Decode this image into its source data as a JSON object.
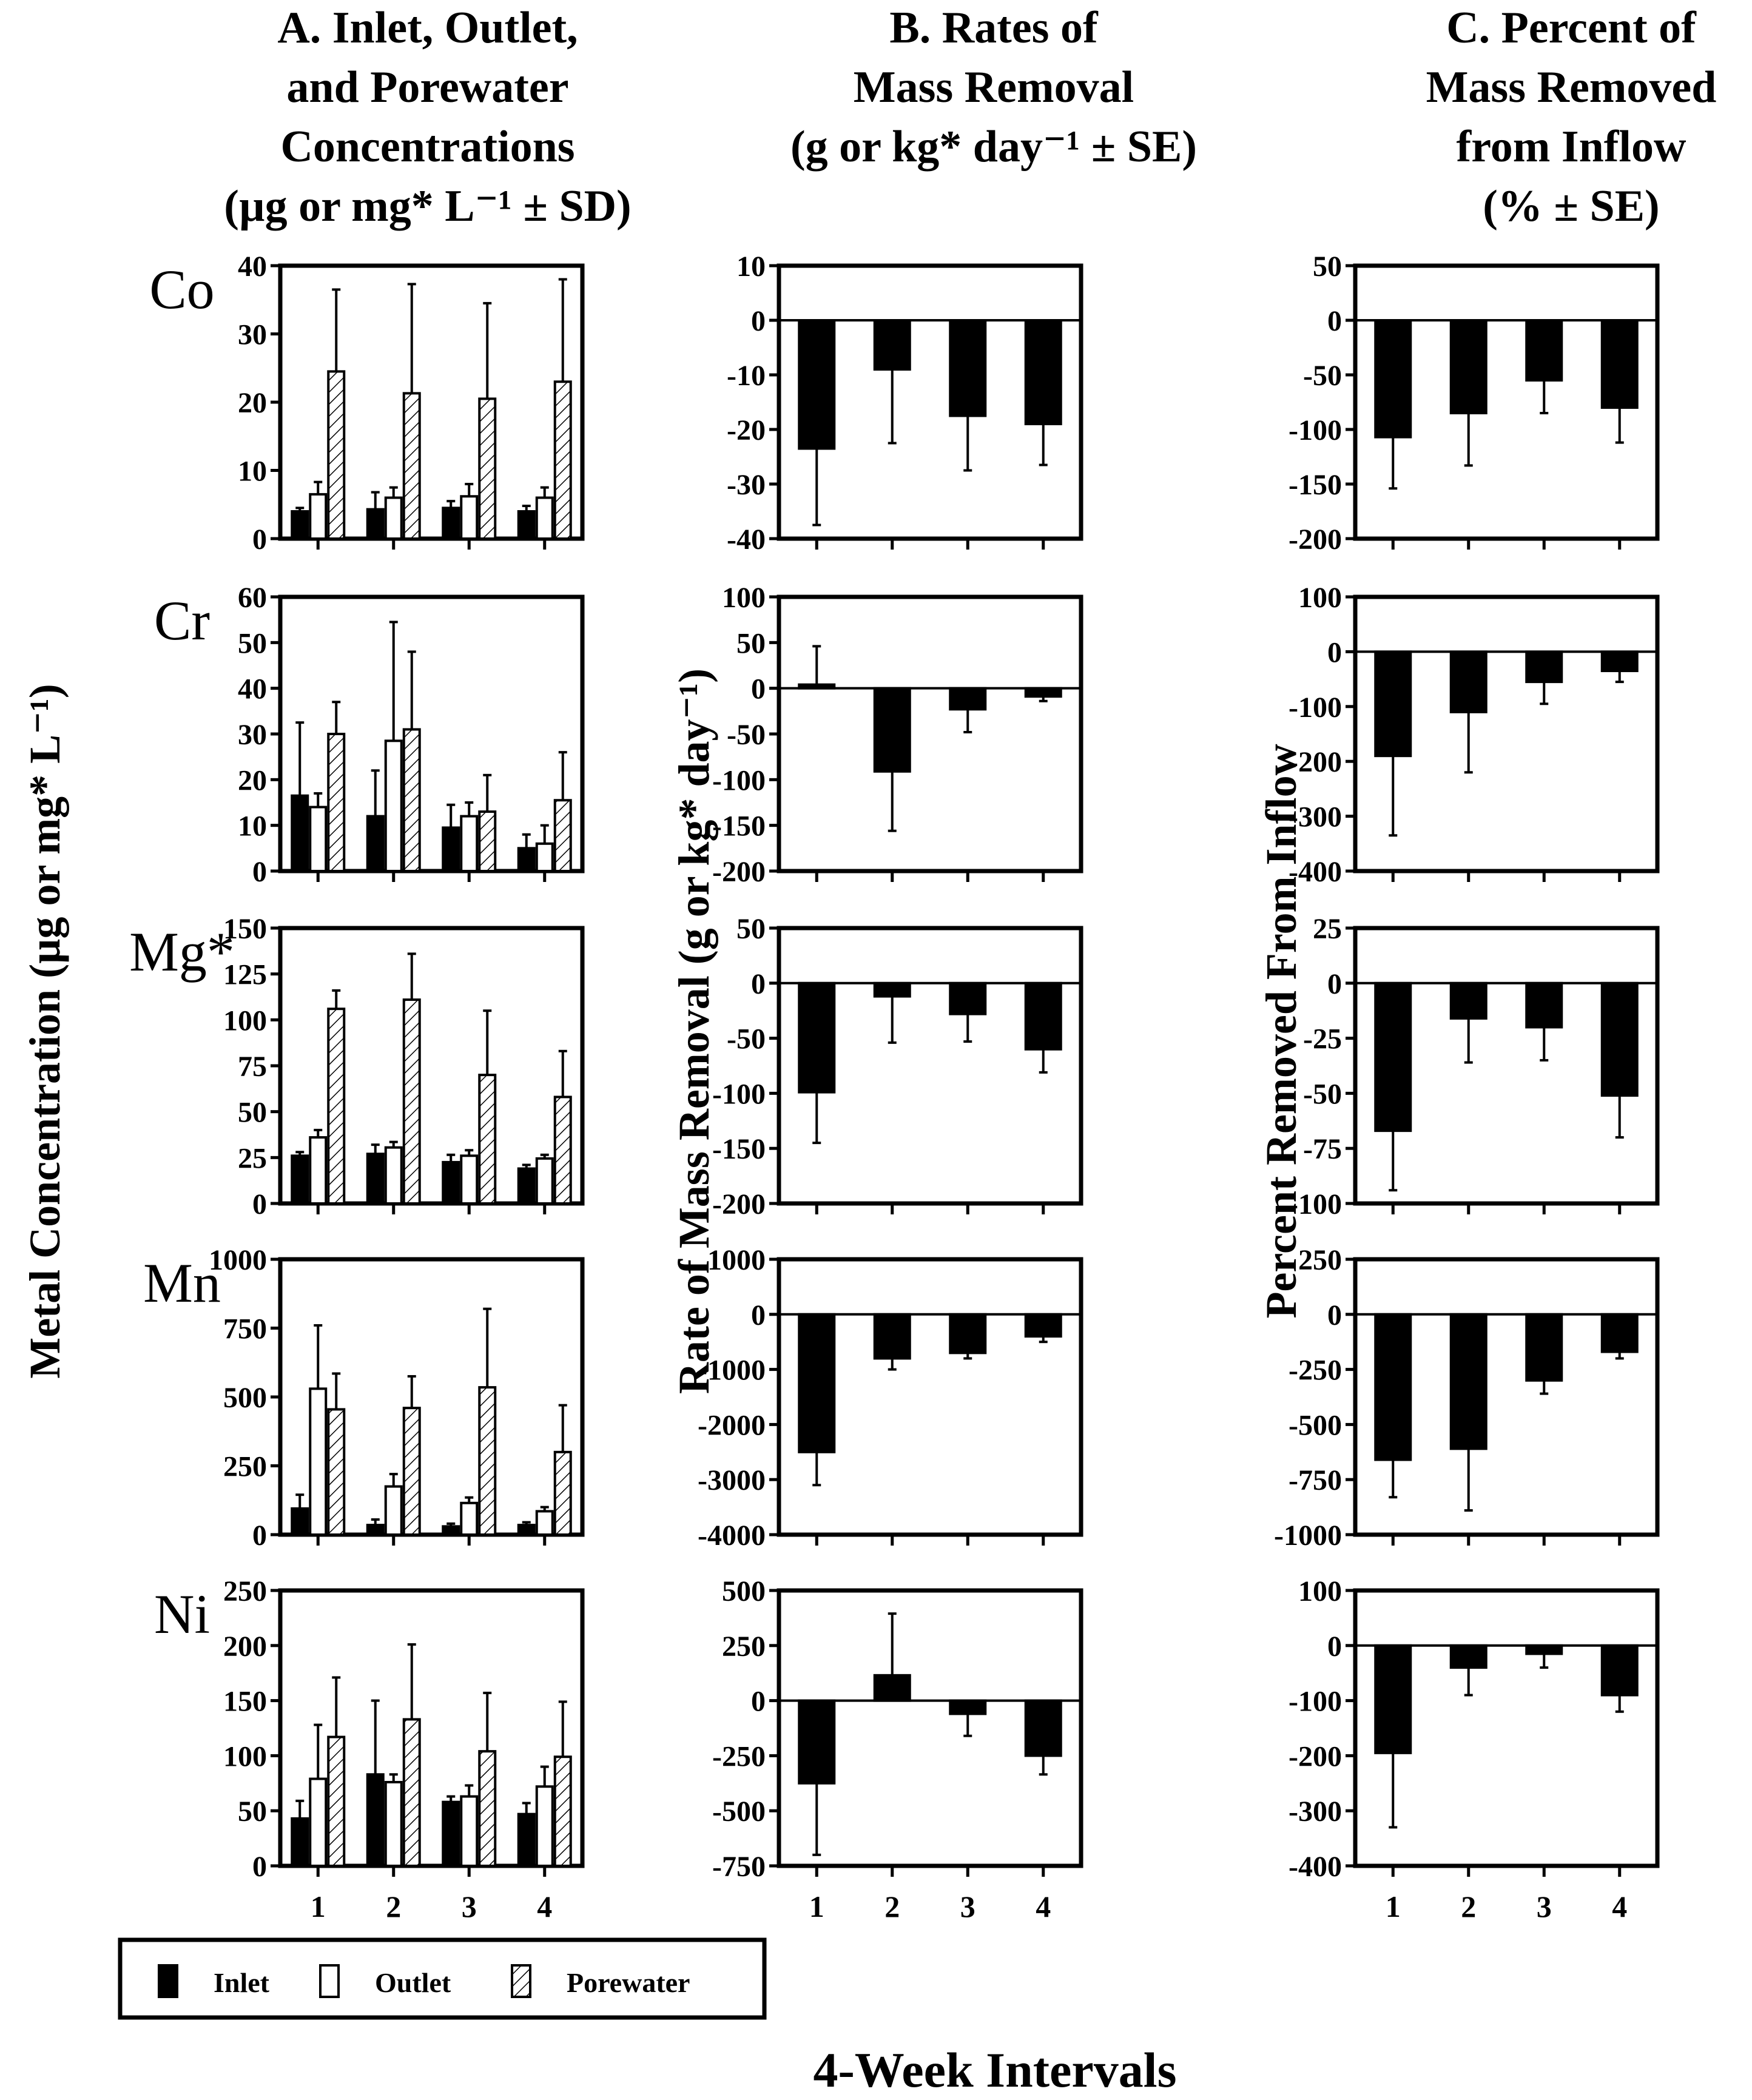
{
  "columns": [
    {
      "title_lines": [
        "A.  Inlet, Outlet,",
        "and Porewater",
        "Concentrations",
        "(µg or mg* L⁻¹ ± SD)"
      ]
    },
    {
      "title_lines": [
        "B.  Rates of",
        "Mass Removal",
        "(g or kg* day⁻¹ ± SE)"
      ]
    },
    {
      "title_lines": [
        "C.  Percent of",
        "Mass Removed",
        "from Inflow",
        "(% ± SE)"
      ]
    }
  ],
  "ylabels": {
    "a": "Metal Concentration (µg or mg* L⁻¹)",
    "b": "Rate of Mass Removal (g or kg* day⁻¹)",
    "c": "Percent Removed From Inflow"
  },
  "xlabel": "4-Week Intervals",
  "legend": [
    {
      "label": "Inlet",
      "fill": "solid",
      "color": "#000000"
    },
    {
      "label": "Outlet",
      "fill": "open",
      "color": "#ffffff"
    },
    {
      "label": "Porewater",
      "fill": "hatched",
      "color": "#ffffff"
    }
  ],
  "chart_data": [
    {
      "type": "bar",
      "panel": "A",
      "metal": "Co",
      "categories": [
        "1",
        "2",
        "3",
        "4"
      ],
      "ylim": [
        0,
        40
      ],
      "yticks": [
        0,
        10,
        20,
        30,
        40
      ],
      "series": [
        {
          "name": "Inlet",
          "values": [
            4,
            4.3,
            4.5,
            4
          ],
          "err": [
            0.5,
            2.5,
            1,
            0.8
          ]
        },
        {
          "name": "Outlet",
          "values": [
            6.5,
            6,
            6.2,
            6
          ],
          "err": [
            1.8,
            1.5,
            1.8,
            1.5
          ]
        },
        {
          "name": "Porewater",
          "values": [
            24.5,
            21.3,
            20.5,
            23
          ],
          "err": [
            12,
            16,
            14,
            15
          ]
        }
      ]
    },
    {
      "type": "bar",
      "panel": "A",
      "metal": "Cr",
      "categories": [
        "1",
        "2",
        "3",
        "4"
      ],
      "ylim": [
        0,
        60
      ],
      "yticks": [
        0,
        10,
        20,
        30,
        40,
        50,
        60
      ],
      "series": [
        {
          "name": "Inlet",
          "values": [
            16.5,
            12,
            9.5,
            5
          ],
          "err": [
            16,
            10,
            5,
            3
          ]
        },
        {
          "name": "Outlet",
          "values": [
            14,
            28.5,
            12,
            6
          ],
          "err": [
            3,
            26,
            3,
            4
          ]
        },
        {
          "name": "Porewater",
          "values": [
            30,
            31,
            13,
            15.5
          ],
          "err": [
            7,
            17,
            8,
            10.5
          ]
        }
      ]
    },
    {
      "type": "bar",
      "panel": "A",
      "metal": "Mg*",
      "categories": [
        "1",
        "2",
        "3",
        "4"
      ],
      "ylim": [
        0,
        150
      ],
      "yticks": [
        0,
        25,
        50,
        75,
        100,
        125,
        150
      ],
      "series": [
        {
          "name": "Inlet",
          "values": [
            26,
            27,
            22.5,
            19
          ],
          "err": [
            2,
            5,
            4,
            2
          ]
        },
        {
          "name": "Outlet",
          "values": [
            36,
            30.5,
            26,
            24.5
          ],
          "err": [
            4,
            3,
            3,
            2
          ]
        },
        {
          "name": "Porewater",
          "values": [
            106,
            111,
            70,
            58
          ],
          "err": [
            10,
            25,
            35,
            25
          ]
        }
      ]
    },
    {
      "type": "bar",
      "panel": "A",
      "metal": "Mn",
      "categories": [
        "1",
        "2",
        "3",
        "4"
      ],
      "ylim": [
        0,
        1000
      ],
      "yticks": [
        0,
        250,
        500,
        750,
        1000
      ],
      "series": [
        {
          "name": "Inlet",
          "values": [
            95,
            35,
            30,
            35
          ],
          "err": [
            50,
            20,
            10,
            10
          ]
        },
        {
          "name": "Outlet",
          "values": [
            530,
            175,
            115,
            85
          ],
          "err": [
            230,
            45,
            20,
            15
          ]
        },
        {
          "name": "Porewater",
          "values": [
            455,
            460,
            535,
            300
          ],
          "err": [
            130,
            115,
            285,
            170
          ]
        }
      ]
    },
    {
      "type": "bar",
      "panel": "A",
      "metal": "Ni",
      "categories": [
        "1",
        "2",
        "3",
        "4"
      ],
      "ylim": [
        0,
        250
      ],
      "yticks": [
        0,
        50,
        100,
        150,
        200,
        250
      ],
      "series": [
        {
          "name": "Inlet",
          "values": [
            43,
            83,
            58,
            47
          ],
          "err": [
            16,
            67,
            5,
            10
          ]
        },
        {
          "name": "Outlet",
          "values": [
            79,
            76,
            63,
            72
          ],
          "err": [
            49,
            7,
            10,
            18
          ]
        },
        {
          "name": "Porewater",
          "values": [
            117,
            133,
            104,
            99
          ],
          "err": [
            54,
            68,
            53,
            50
          ]
        }
      ]
    },
    {
      "type": "bar",
      "panel": "B",
      "metal": "Co",
      "categories": [
        "1",
        "2",
        "3",
        "4"
      ],
      "ylim": [
        -40,
        10
      ],
      "yticks": [
        -40,
        -30,
        -20,
        -10,
        0,
        10
      ],
      "series": [
        {
          "name": "Rate",
          "values": [
            -23.5,
            -9,
            -17.5,
            -19
          ],
          "err": [
            14,
            13.5,
            10,
            7.5
          ]
        }
      ]
    },
    {
      "type": "bar",
      "panel": "B",
      "metal": "Cr",
      "categories": [
        "1",
        "2",
        "3",
        "4"
      ],
      "ylim": [
        -200,
        100
      ],
      "yticks": [
        -200,
        -150,
        -100,
        -50,
        0,
        50,
        100
      ],
      "series": [
        {
          "name": "Rate",
          "values": [
            4,
            -91,
            -23,
            -9
          ],
          "err": [
            42,
            65,
            25,
            5
          ]
        }
      ]
    },
    {
      "type": "bar",
      "panel": "B",
      "metal": "Mg*",
      "categories": [
        "1",
        "2",
        "3",
        "4"
      ],
      "ylim": [
        -200,
        50
      ],
      "yticks": [
        -200,
        -150,
        -100,
        -50,
        0,
        50
      ],
      "series": [
        {
          "name": "Rate",
          "values": [
            -99,
            -12,
            -28,
            -60
          ],
          "err": [
            46,
            42,
            25,
            21
          ]
        }
      ]
    },
    {
      "type": "bar",
      "panel": "B",
      "metal": "Mn",
      "categories": [
        "1",
        "2",
        "3",
        "4"
      ],
      "ylim": [
        -4000,
        1000
      ],
      "yticks": [
        -4000,
        -3000,
        -2000,
        -1000,
        0,
        1000
      ],
      "series": [
        {
          "name": "Rate",
          "values": [
            -2500,
            -800,
            -700,
            -400
          ],
          "err": [
            600,
            200,
            100,
            100
          ]
        }
      ]
    },
    {
      "type": "bar",
      "panel": "B",
      "metal": "Ni",
      "categories": [
        "1",
        "2",
        "3",
        "4"
      ],
      "ylim": [
        -750,
        500
      ],
      "yticks": [
        -750,
        -500,
        -250,
        0,
        250,
        500
      ],
      "series": [
        {
          "name": "Rate",
          "values": [
            -375,
            115,
            -60,
            -250
          ],
          "err": [
            325,
            280,
            100,
            85
          ]
        }
      ]
    },
    {
      "type": "bar",
      "panel": "C",
      "metal": "Co",
      "categories": [
        "1",
        "2",
        "3",
        "4"
      ],
      "ylim": [
        -200,
        50
      ],
      "yticks": [
        -200,
        -150,
        -100,
        -50,
        0,
        50
      ],
      "series": [
        {
          "name": "Percent",
          "values": [
            -107,
            -85,
            -55,
            -80
          ],
          "err": [
            47,
            48,
            30,
            32
          ]
        }
      ]
    },
    {
      "type": "bar",
      "panel": "C",
      "metal": "Cr",
      "categories": [
        "1",
        "2",
        "3",
        "4"
      ],
      "ylim": [
        -400,
        100
      ],
      "yticks": [
        -400,
        -300,
        -200,
        -100,
        0,
        100
      ],
      "series": [
        {
          "name": "Percent",
          "values": [
            -190,
            -110,
            -55,
            -35
          ],
          "err": [
            145,
            110,
            40,
            20
          ]
        }
      ]
    },
    {
      "type": "bar",
      "panel": "C",
      "metal": "Mg*",
      "categories": [
        "1",
        "2",
        "3",
        "4"
      ],
      "ylim": [
        -100,
        25
      ],
      "yticks": [
        -100,
        -75,
        -50,
        -25,
        0,
        25
      ],
      "series": [
        {
          "name": "Percent",
          "values": [
            -67,
            -16,
            -20,
            -51
          ],
          "err": [
            27,
            20,
            15,
            19
          ]
        }
      ]
    },
    {
      "type": "bar",
      "panel": "C",
      "metal": "Mn",
      "categories": [
        "1",
        "2",
        "3",
        "4"
      ],
      "ylim": [
        -1000,
        250
      ],
      "yticks": [
        -1000,
        -750,
        -500,
        -250,
        0,
        250
      ],
      "series": [
        {
          "name": "Percent",
          "values": [
            -660,
            -610,
            -300,
            -170
          ],
          "err": [
            170,
            280,
            60,
            30
          ]
        }
      ]
    },
    {
      "type": "bar",
      "panel": "C",
      "metal": "Ni",
      "categories": [
        "1",
        "2",
        "3",
        "4"
      ],
      "ylim": [
        -400,
        100
      ],
      "yticks": [
        -400,
        -300,
        -200,
        -100,
        0,
        100
      ],
      "series": [
        {
          "name": "Percent",
          "values": [
            -195,
            -40,
            -15,
            -90
          ],
          "err": [
            135,
            50,
            25,
            30
          ]
        }
      ]
    }
  ]
}
